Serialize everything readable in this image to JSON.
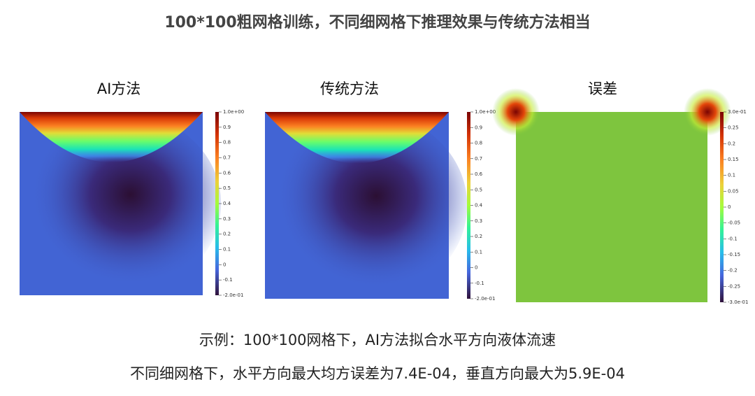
{
  "title": "100*100粗网格训练，不同细网格下推理效果与传统方法相当",
  "panels": [
    {
      "title": "AI方法",
      "colorbar_ticks": [
        "1.0e+00",
        "0.9",
        "0.8",
        "0.7",
        "0.6",
        "0.5",
        "0.4",
        "0.3",
        "0.2",
        "0.1",
        "0",
        "-0.1",
        "-2.0e-01"
      ]
    },
    {
      "title": "传统方法",
      "colorbar_ticks": [
        "1.0e+00",
        "0.9",
        "0.8",
        "0.7",
        "0.6",
        "0.5",
        "0.4",
        "0.3",
        "0.2",
        "0.1",
        "0",
        "-0.1",
        "-2.0e-01"
      ]
    },
    {
      "title": "误差",
      "colorbar_ticks": [
        "3.0e-01",
        "0.25",
        "0.2",
        "0.15",
        "0.1",
        "0.05",
        "0",
        "-0.05",
        "-0.1",
        "-0.15",
        "-0.2",
        "-0.25",
        "-3.0e-01"
      ]
    }
  ],
  "captions": [
    "示例：100*100网格下，AI方法拟合水平方向液体流速",
    "不同细网格下，水平方向最大均方误差为7.4E-04，垂直方向最大为5.9E-04"
  ]
}
